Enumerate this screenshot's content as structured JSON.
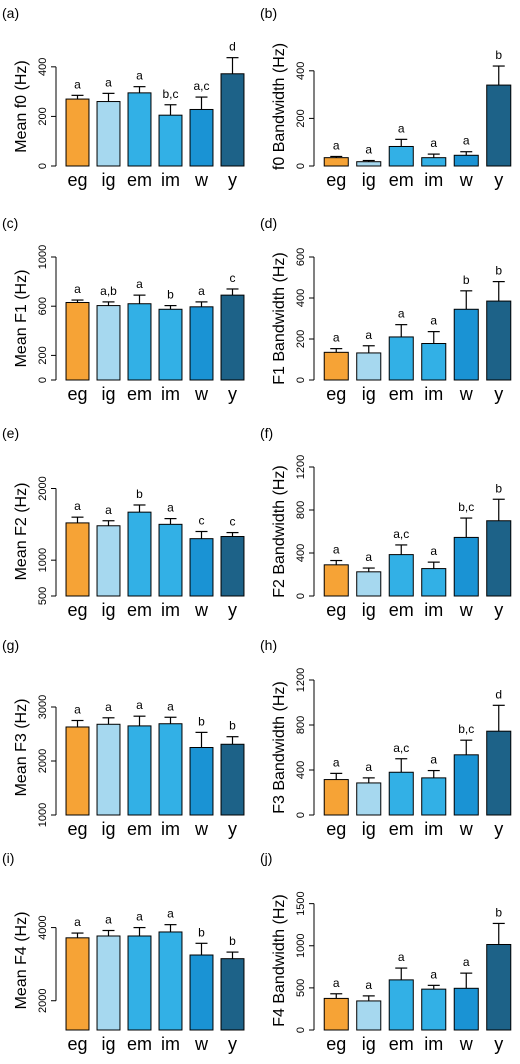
{
  "categories": [
    "eg",
    "ig",
    "em",
    "im",
    "w",
    "y"
  ],
  "colors": [
    "#f6a336",
    "#a6d8ef",
    "#32b0e6",
    "#32b0e6",
    "#1a93d4",
    "#1d6288"
  ],
  "chart_data": [
    {
      "panel": "(a)",
      "type": "bar",
      "ylabel": "Mean f0 (Hz)",
      "ylim": [
        0,
        480
      ],
      "yticks": [
        0,
        200,
        400
      ],
      "values": [
        270,
        260,
        295,
        205,
        228,
        372
      ],
      "errors": [
        15,
        33,
        25,
        42,
        50,
        65
      ],
      "letters": [
        "a",
        "a",
        "a",
        "b,c",
        "a,c",
        "d"
      ]
    },
    {
      "panel": "(b)",
      "type": "bar",
      "ylabel": "f0 Bandwidth (Hz)",
      "ylim": [
        0,
        500
      ],
      "yticks": [
        0,
        200,
        400
      ],
      "values": [
        35,
        18,
        82,
        35,
        45,
        340
      ],
      "errors": [
        5,
        5,
        30,
        15,
        15,
        80
      ],
      "letters": [
        "a",
        "a",
        "a",
        "a",
        "a",
        "b"
      ]
    },
    {
      "panel": "(c)",
      "type": "bar",
      "ylabel": "Mean F1 (Hz)",
      "ylim": [
        0,
        1000
      ],
      "yticks": [
        0,
        200,
        600,
        1000
      ],
      "values": [
        630,
        605,
        620,
        575,
        595,
        690
      ],
      "errors": [
        20,
        30,
        70,
        30,
        40,
        50
      ],
      "letters": [
        "a",
        "a,b",
        "a",
        "b",
        "a",
        "c"
      ]
    },
    {
      "panel": "(d)",
      "type": "bar",
      "ylabel": "F1 Bandwidth (Hz)",
      "ylim": [
        0,
        600
      ],
      "yticks": [
        0,
        200,
        400,
        600
      ],
      "values": [
        135,
        132,
        210,
        178,
        345,
        385
      ],
      "errors": [
        18,
        35,
        60,
        58,
        90,
        95
      ],
      "letters": [
        "a",
        "a",
        "a",
        "a",
        "b",
        "b"
      ]
    },
    {
      "panel": "(e)",
      "type": "bar",
      "ylabel": "Mean F2 (Hz)",
      "ylim": [
        500,
        2300
      ],
      "yticks": [
        500,
        1000,
        2000
      ],
      "values": [
        1520,
        1480,
        1670,
        1500,
        1300,
        1330
      ],
      "errors": [
        80,
        70,
        100,
        80,
        100,
        55
      ],
      "letters": [
        "a",
        "a",
        "b",
        "a",
        "c",
        "c"
      ]
    },
    {
      "panel": "(f)",
      "type": "bar",
      "ylabel": "F2 Bandwidth (Hz)",
      "ylim": [
        0,
        1200
      ],
      "yticks": [
        0,
        400,
        800,
        1200
      ],
      "values": [
        290,
        225,
        385,
        255,
        545,
        700
      ],
      "errors": [
        40,
        35,
        90,
        60,
        180,
        200
      ],
      "letters": [
        "a",
        "a",
        "a,c",
        "a",
        "b,c",
        "b"
      ]
    },
    {
      "panel": "(g)",
      "type": "bar",
      "ylabel": "Mean F3 (Hz)",
      "ylim": [
        1000,
        3500
      ],
      "yticks": [
        1000,
        2000,
        3000
      ],
      "values": [
        2630,
        2680,
        2650,
        2690,
        2250,
        2310
      ],
      "errors": [
        120,
        120,
        180,
        120,
        280,
        140
      ],
      "letters": [
        "a",
        "a",
        "a",
        "a",
        "b",
        "b"
      ]
    },
    {
      "panel": "(h)",
      "type": "bar",
      "ylabel": "F3 Bandwidth (Hz)",
      "ylim": [
        0,
        1200
      ],
      "yticks": [
        0,
        400,
        800,
        1200
      ],
      "values": [
        315,
        285,
        380,
        330,
        535,
        745
      ],
      "errors": [
        55,
        45,
        120,
        65,
        130,
        230
      ],
      "letters": [
        "a",
        "a",
        "a,c",
        "a",
        "b,c",
        "d"
      ]
    },
    {
      "panel": "(i)",
      "type": "bar",
      "ylabel": "Mean F4 (Hz)",
      "ylim": [
        1200,
        5000
      ],
      "yticks": [
        2000,
        4000
      ],
      "values": [
        3720,
        3770,
        3770,
        3880,
        3250,
        3150
      ],
      "errors": [
        130,
        150,
        230,
        200,
        320,
        180
      ],
      "letters": [
        "a",
        "a",
        "a",
        "a",
        "b",
        "b"
      ]
    },
    {
      "panel": "(j)",
      "type": "bar",
      "ylabel": "F4 Bandwidth (Hz)",
      "ylim": [
        0,
        1650
      ],
      "yticks": [
        0,
        500,
        1000,
        1500
      ],
      "values": [
        375,
        345,
        595,
        485,
        495,
        1015
      ],
      "errors": [
        55,
        60,
        140,
        45,
        180,
        250
      ],
      "letters": [
        "a",
        "a",
        "a",
        "a",
        "a",
        "b"
      ]
    }
  ]
}
